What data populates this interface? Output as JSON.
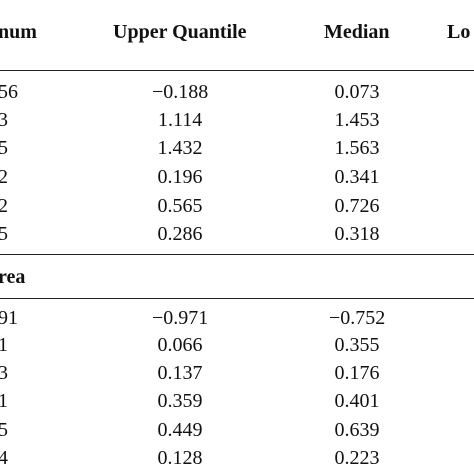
{
  "table": {
    "header": [
      "num",
      "Upper Quantile",
      "Median",
      "Lo"
    ],
    "sections": [
      {
        "rows": [
          [
            "56",
            "−0.188",
            "0.073"
          ],
          [
            "3",
            "1.114",
            "1.453"
          ],
          [
            "5",
            "1.432",
            "1.563"
          ],
          [
            "2",
            "0.196",
            "0.341"
          ],
          [
            "2",
            "0.565",
            "0.726"
          ],
          [
            "5",
            "0.286",
            "0.318"
          ]
        ]
      },
      {
        "title": "rea",
        "rows": [
          [
            "91",
            "−0.971",
            "−0.752"
          ],
          [
            "1",
            "0.066",
            "0.355"
          ],
          [
            "3",
            "0.137",
            "0.176"
          ],
          [
            "1",
            "0.359",
            "0.401"
          ],
          [
            "5",
            "0.449",
            "0.639"
          ],
          [
            "4",
            "0.128",
            "0.223"
          ]
        ]
      }
    ]
  }
}
